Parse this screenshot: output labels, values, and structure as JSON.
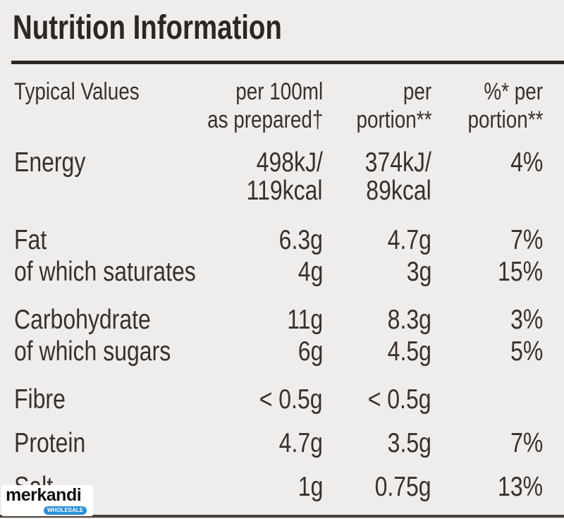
{
  "title": "Nutrition Information",
  "table": {
    "header": [
      [
        "Typical Values"
      ],
      [
        "per 100ml",
        "as prepared†"
      ],
      [
        "per",
        "portion**"
      ],
      [
        "%* per",
        "portion**"
      ]
    ],
    "rows": [
      [
        [
          "Energy"
        ],
        [
          "498kJ/",
          "119kcal"
        ],
        [
          "374kJ/",
          "89kcal"
        ],
        [
          "4%"
        ]
      ],
      [
        [
          "Fat"
        ],
        [
          "6.3g"
        ],
        [
          "4.7g"
        ],
        [
          "7%"
        ]
      ],
      [
        [
          "of which saturates"
        ],
        [
          "4g"
        ],
        [
          "3g"
        ],
        [
          "15%"
        ]
      ],
      [
        [
          "Carbohydrate"
        ],
        [
          "11g"
        ],
        [
          "8.3g"
        ],
        [
          "3%"
        ]
      ],
      [
        [
          "of which sugars"
        ],
        [
          "6g"
        ],
        [
          "4.5g"
        ],
        [
          "5%"
        ]
      ],
      [
        [
          "Fibre"
        ],
        [
          "< 0.5g"
        ],
        [
          "< 0.5g"
        ],
        []
      ],
      [
        [
          "Protein"
        ],
        [
          "4.7g"
        ],
        [
          "3.5g"
        ],
        [
          "7%"
        ]
      ],
      [
        [
          "Salt"
        ],
        [
          "1g"
        ],
        [
          "0.75g"
        ],
        [
          "13%"
        ]
      ]
    ]
  },
  "watermark": {
    "name": "merkandi",
    "tag": "WHOLESALE"
  }
}
